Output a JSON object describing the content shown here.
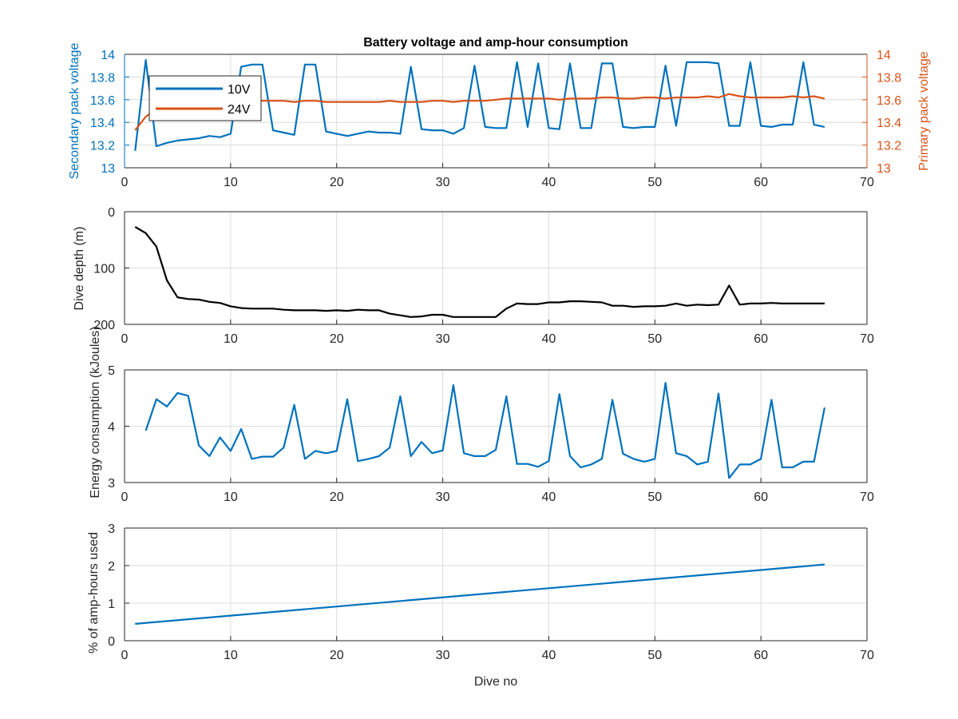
{
  "figure": {
    "colors": {
      "blue": "#0072bd",
      "orange": "#d95319",
      "black": "#000000",
      "grid": "#dcdcdc",
      "axis": "#262626"
    },
    "x_ticks": [
      "0",
      "10",
      "20",
      "30",
      "40",
      "50",
      "60",
      "70"
    ]
  },
  "chart_data": [
    {
      "type": "line",
      "title": "Battery voltage and amp-hour consumption",
      "xlabel": "",
      "ylabel": "Secondary pack voltage",
      "ylabel_right": "Primary pack voltage",
      "xlim": [
        0,
        70
      ],
      "ylim": [
        13,
        14
      ],
      "ylim_right": [
        13,
        14
      ],
      "yticks": [
        "13",
        "13.2",
        "13.4",
        "13.6",
        "13.8",
        "14"
      ],
      "yticks_right": [
        "13",
        "13.2",
        "13.4",
        "13.6",
        "13.8",
        "14"
      ],
      "grid": true,
      "legend": {
        "placement": "top-left",
        "entries": [
          "10V",
          "24V"
        ]
      },
      "series": [
        {
          "name": "10V",
          "axis": "left",
          "color": "#0072bd",
          "x": [
            1,
            2,
            3,
            4,
            5,
            6,
            7,
            8,
            9,
            10,
            11,
            12,
            13,
            14,
            15,
            16,
            17,
            18,
            19,
            20,
            21,
            22,
            23,
            24,
            25,
            26,
            27,
            28,
            29,
            30,
            31,
            32,
            33,
            34,
            35,
            36,
            37,
            38,
            39,
            40,
            41,
            42,
            43,
            44,
            45,
            46,
            47,
            48,
            49,
            50,
            51,
            52,
            53,
            54,
            55,
            56,
            57,
            58,
            59,
            60,
            61,
            62,
            63,
            64,
            65,
            66
          ],
          "values": [
            13.15,
            13.95,
            13.19,
            13.22,
            13.24,
            13.25,
            13.26,
            13.28,
            13.27,
            13.3,
            13.89,
            13.91,
            13.91,
            13.33,
            13.31,
            13.29,
            13.91,
            13.91,
            13.32,
            13.3,
            13.28,
            13.3,
            13.32,
            13.31,
            13.31,
            13.3,
            13.89,
            13.34,
            13.33,
            13.33,
            13.3,
            13.35,
            13.9,
            13.36,
            13.35,
            13.35,
            13.93,
            13.36,
            13.92,
            13.35,
            13.34,
            13.92,
            13.35,
            13.35,
            13.92,
            13.92,
            13.36,
            13.35,
            13.36,
            13.36,
            13.9,
            13.37,
            13.93,
            13.93,
            13.93,
            13.92,
            13.37,
            13.37,
            13.93,
            13.37,
            13.36,
            13.38,
            13.38,
            13.93,
            13.38,
            13.36
          ]
        },
        {
          "name": "24V",
          "axis": "right",
          "color": "#d95319",
          "x": [
            1,
            2,
            3,
            4,
            5,
            6,
            7,
            8,
            9,
            10,
            11,
            12,
            13,
            14,
            15,
            16,
            17,
            18,
            19,
            20,
            21,
            22,
            23,
            24,
            25,
            26,
            27,
            28,
            29,
            30,
            31,
            32,
            33,
            34,
            35,
            36,
            37,
            38,
            39,
            40,
            41,
            42,
            43,
            44,
            45,
            46,
            47,
            48,
            49,
            50,
            51,
            52,
            53,
            54,
            55,
            56,
            57,
            58,
            59,
            60,
            61,
            62,
            63,
            64,
            65,
            66
          ],
          "values": [
            13.33,
            13.45,
            13.52,
            13.55,
            13.57,
            13.58,
            13.58,
            13.58,
            13.59,
            13.59,
            13.59,
            13.6,
            13.59,
            13.59,
            13.59,
            13.58,
            13.59,
            13.59,
            13.58,
            13.58,
            13.58,
            13.58,
            13.58,
            13.58,
            13.59,
            13.58,
            13.58,
            13.58,
            13.59,
            13.59,
            13.58,
            13.59,
            13.59,
            13.59,
            13.6,
            13.61,
            13.61,
            13.61,
            13.61,
            13.61,
            13.6,
            13.61,
            13.61,
            13.61,
            13.62,
            13.62,
            13.61,
            13.61,
            13.62,
            13.62,
            13.61,
            13.62,
            13.62,
            13.62,
            13.63,
            13.62,
            13.65,
            13.63,
            13.62,
            13.62,
            13.62,
            13.62,
            13.63,
            13.62,
            13.63,
            13.61
          ]
        }
      ]
    },
    {
      "type": "line",
      "xlabel": "",
      "ylabel": "Dive depth (m)",
      "xlim": [
        0,
        70
      ],
      "ylim": [
        0,
        200
      ],
      "y_reversed": true,
      "yticks": [
        "0",
        "100",
        "200"
      ],
      "grid": true,
      "series": [
        {
          "color": "#000000",
          "x": [
            1,
            2,
            3,
            4,
            5,
            6,
            7,
            8,
            9,
            10,
            11,
            12,
            13,
            14,
            15,
            16,
            17,
            18,
            19,
            20,
            21,
            22,
            23,
            24,
            25,
            26,
            27,
            28,
            29,
            30,
            31,
            32,
            33,
            34,
            35,
            36,
            37,
            38,
            39,
            40,
            41,
            42,
            43,
            44,
            45,
            46,
            47,
            48,
            49,
            50,
            51,
            52,
            53,
            54,
            55,
            56,
            57,
            58,
            59,
            60,
            61,
            62,
            63,
            64,
            65,
            66
          ],
          "values": [
            27,
            38,
            62,
            122,
            152,
            155,
            156,
            160,
            162,
            168,
            171,
            172,
            172,
            172,
            174,
            175,
            175,
            175,
            176,
            175,
            176,
            174,
            175,
            175,
            181,
            184,
            187,
            186,
            183,
            183,
            187,
            187,
            187,
            187,
            187,
            172,
            163,
            164,
            164,
            161,
            161,
            159,
            159,
            160,
            161,
            167,
            167,
            169,
            168,
            168,
            167,
            163,
            167,
            165,
            166,
            165,
            131,
            165,
            163,
            163,
            162,
            163,
            163,
            163,
            163,
            163
          ]
        }
      ]
    },
    {
      "type": "line",
      "xlabel": "",
      "ylabel": "Energy consumption (kJoules)",
      "xlim": [
        0,
        70
      ],
      "ylim": [
        3,
        5
      ],
      "yticks": [
        "3",
        "4",
        "5"
      ],
      "grid": true,
      "series": [
        {
          "color": "#0072bd",
          "x": [
            2,
            3,
            4,
            5,
            6,
            7,
            8,
            9,
            10,
            11,
            12,
            13,
            14,
            15,
            16,
            17,
            18,
            19,
            20,
            21,
            22,
            23,
            24,
            25,
            26,
            27,
            28,
            29,
            30,
            31,
            32,
            33,
            34,
            35,
            36,
            37,
            38,
            39,
            40,
            41,
            42,
            43,
            44,
            45,
            46,
            47,
            48,
            49,
            50,
            51,
            52,
            53,
            54,
            55,
            56,
            57,
            58,
            59,
            60,
            61,
            62,
            63,
            64,
            65,
            66
          ],
          "values": [
            3.92,
            4.48,
            4.35,
            4.59,
            4.54,
            3.66,
            3.47,
            3.8,
            3.56,
            3.95,
            3.42,
            3.46,
            3.46,
            3.62,
            4.38,
            3.42,
            3.56,
            3.52,
            3.56,
            4.48,
            3.38,
            3.42,
            3.47,
            3.62,
            4.53,
            3.47,
            3.72,
            3.52,
            3.57,
            4.73,
            3.52,
            3.47,
            3.47,
            3.58,
            4.53,
            3.33,
            3.33,
            3.28,
            3.38,
            4.57,
            3.47,
            3.27,
            3.32,
            3.42,
            4.47,
            3.51,
            3.42,
            3.37,
            3.42,
            4.77,
            3.52,
            3.47,
            3.32,
            3.37,
            4.58,
            3.08,
            3.32,
            3.32,
            3.42,
            4.47,
            3.27,
            3.27,
            3.37,
            3.37,
            4.33
          ]
        }
      ]
    },
    {
      "type": "line",
      "xlabel": "Dive no",
      "ylabel": "% of amp-hours used",
      "xlim": [
        0,
        70
      ],
      "ylim": [
        0,
        3
      ],
      "yticks": [
        "0",
        "1",
        "2",
        "3"
      ],
      "grid": true,
      "series": [
        {
          "color": "#0072bd",
          "x": [
            1,
            66
          ],
          "values": [
            0.45,
            2.03
          ]
        }
      ]
    }
  ]
}
